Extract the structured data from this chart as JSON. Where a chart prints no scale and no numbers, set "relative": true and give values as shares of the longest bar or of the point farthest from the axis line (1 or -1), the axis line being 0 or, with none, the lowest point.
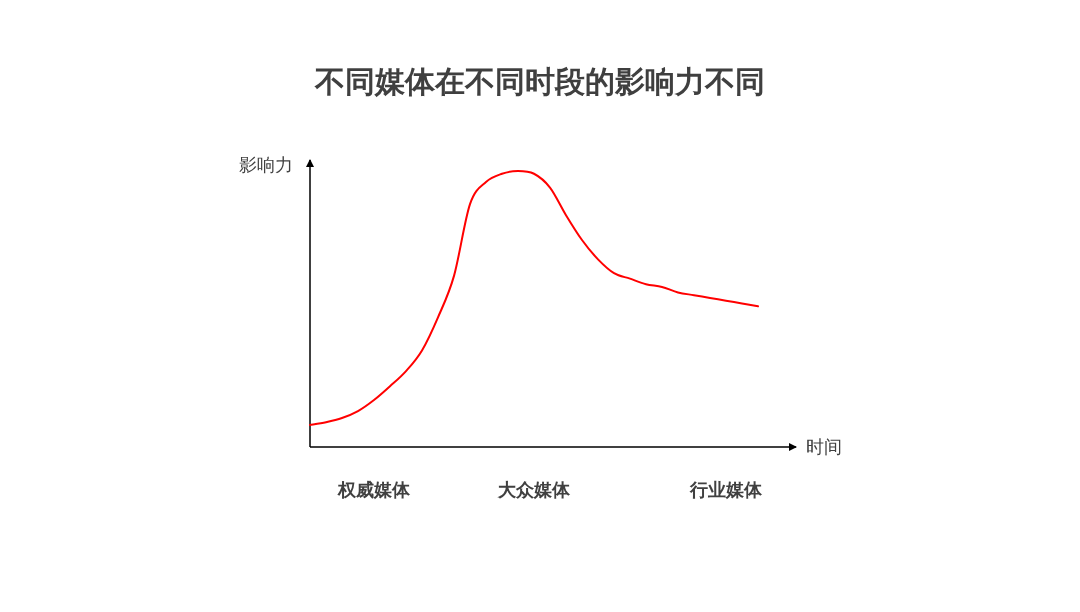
{
  "chart_data": {
    "type": "line",
    "title": "不同媒体在不同时段的影响力不同",
    "xlabel": "时间",
    "ylabel": "影响力",
    "relative": true,
    "categories": [
      null,
      null,
      null,
      null,
      "权威媒体",
      null,
      null,
      null,
      null,
      null,
      null,
      null,
      null,
      null,
      "大众媒体",
      null,
      null,
      null,
      null,
      null,
      null,
      null,
      null,
      null,
      null,
      null,
      "行业媒体",
      null,
      null
    ],
    "series": [
      {
        "color": "#ff0000",
        "values": [
          0.08,
          0.09,
          0.105,
          0.13,
          0.17,
          0.22,
          0.275,
          0.35,
          0.47,
          0.62,
          0.88,
          0.96,
          0.99,
          1.0,
          0.99,
          0.94,
          0.84,
          0.75,
          0.68,
          0.63,
          0.61,
          0.59,
          0.58,
          0.56,
          0.55,
          0.54,
          0.53,
          0.52,
          0.51
        ]
      }
    ]
  }
}
